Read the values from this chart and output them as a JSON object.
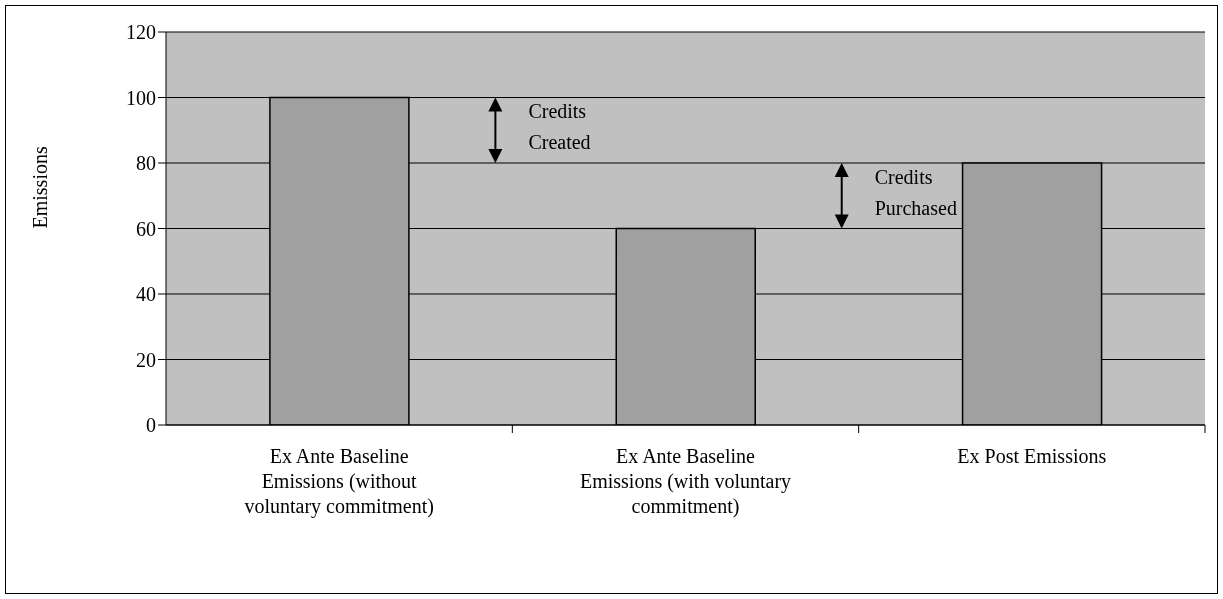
{
  "chart_data": {
    "type": "bar",
    "categories": [
      "Ex Ante Baseline Emissions (without voluntary commitment)",
      "Ex Ante Baseline Emissions (with voluntary commitment)",
      "Ex Post Emissions"
    ],
    "values": [
      100,
      60,
      80
    ],
    "color": "#a0a0a0",
    "ylabel": "Emissions",
    "ylim": [
      0,
      120
    ],
    "yticks": [
      0,
      20,
      40,
      60,
      80,
      100,
      120
    ],
    "grid": "y",
    "legend": false,
    "annotations": [
      "Credits Created",
      "Credits Purchased"
    ]
  }
}
